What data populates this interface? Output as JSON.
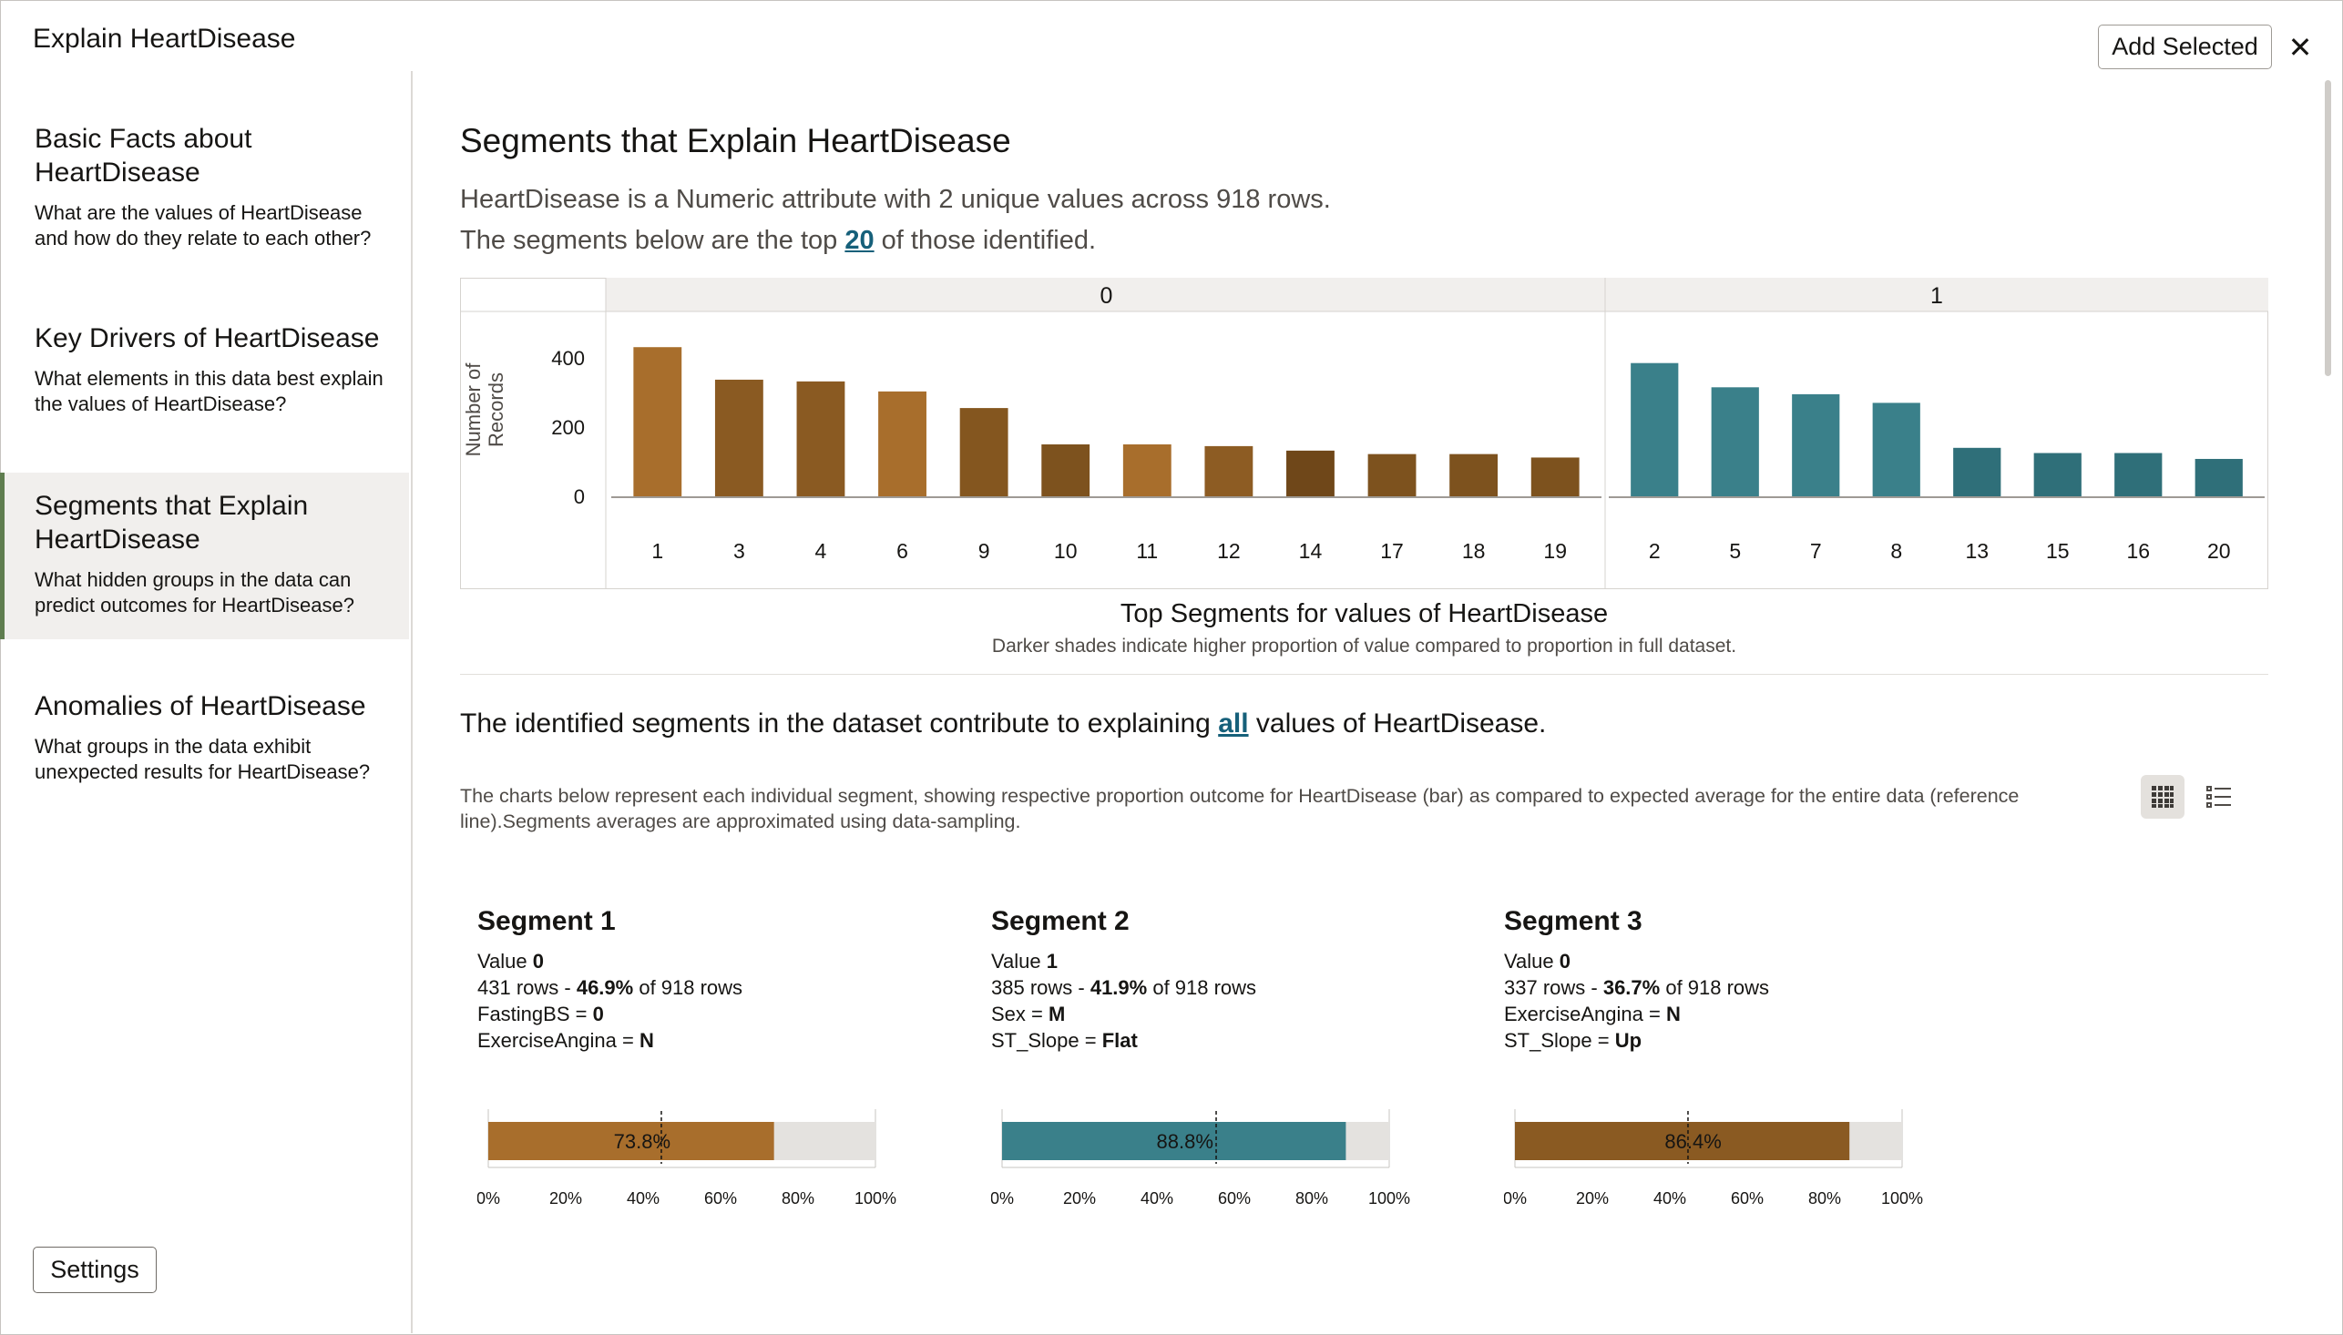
{
  "window": {
    "title": "Explain HeartDisease",
    "add_selected_label": "Add Selected",
    "close_label": "✕"
  },
  "sidebar": {
    "items": [
      {
        "title": "Basic Facts about HeartDisease",
        "desc": "What are the values of HeartDisease and how do they relate to each other?"
      },
      {
        "title": "Key Drivers of HeartDisease",
        "desc": "What elements in this data best explain the values of HeartDisease?"
      },
      {
        "title": "Segments that Explain HeartDisease",
        "desc": "What hidden groups in the data can predict outcomes for HeartDisease?"
      },
      {
        "title": "Anomalies of HeartDisease",
        "desc": "What groups in the data exhibit unexpected results for HeartDisease?"
      }
    ],
    "active_index": 2,
    "active_color": "#5f7d4f",
    "settings_label": "Settings"
  },
  "main": {
    "title": "Segments that Explain HeartDisease",
    "summary_line1": "HeartDisease is a Numeric attribute with 2 unique values across 918 rows.",
    "summary_line2_pre": "The segments below are the top ",
    "summary_line2_link": "20",
    "summary_line2_post": " of those identified.",
    "chart_caption": "Top Segments for values of HeartDisease",
    "chart_note": "Darker shades indicate higher proportion of value compared to proportion in full dataset.",
    "explain_pre": "The identified segments in the dataset contribute to explaining ",
    "explain_link": "all",
    "explain_post": " values of HeartDisease.",
    "description": "The charts below represent each individual segment, showing respective proportion outcome for HeartDisease (bar) as compared to expected average for the entire data (reference line).Segments averages are approximated using data-sampling.",
    "view_toggle": {
      "grid_icon": "grid-view-icon",
      "list_icon": "list-view-icon",
      "selected": "grid"
    }
  },
  "chart_data": {
    "type": "bar",
    "title": "Top Segments for values of HeartDisease",
    "ylabel": "Number of Records",
    "ylim": [
      0,
      500
    ],
    "yticks": [
      0,
      200,
      400
    ],
    "panels": [
      {
        "name": "0",
        "color": "#8a5a22",
        "categories": [
          "1",
          "3",
          "4",
          "6",
          "9",
          "10",
          "11",
          "12",
          "14",
          "17",
          "18",
          "19"
        ],
        "values": [
          431,
          337,
          332,
          303,
          255,
          150,
          150,
          145,
          132,
          122,
          122,
          112
        ],
        "colors": [
          "#a86e2c",
          "#8a5a22",
          "#8a5a22",
          "#a86e2c",
          "#84561f",
          "#7d521e",
          "#a86e2c",
          "#8d5c23",
          "#6f4719",
          "#7d521e",
          "#7d521e",
          "#7d521e"
        ]
      },
      {
        "name": "1",
        "color": "#3a808a",
        "categories": [
          "2",
          "5",
          "7",
          "8",
          "13",
          "15",
          "16",
          "20"
        ],
        "values": [
          385,
          315,
          295,
          270,
          140,
          125,
          125,
          108
        ],
        "colors": [
          "#3a808a",
          "#3a808a",
          "#3a808a",
          "#3a808a",
          "#2f6f79",
          "#2f6f79",
          "#2f6f79",
          "#2f6f79"
        ]
      }
    ]
  },
  "segments": [
    {
      "name": "Segment 1",
      "value_label": "Value ",
      "value": "0",
      "rows_pre": "431 rows - ",
      "rows_pct": "46.9%",
      "rows_post": " of 918 rows",
      "cond1_attr": "FastingBS = ",
      "cond1_val": "0",
      "cond2_attr": "ExerciseAngina = ",
      "cond2_val": "N",
      "bar_label": "73.8%",
      "bar_fraction": 0.738,
      "reference": 0.447,
      "color": "#a86e2c",
      "ticks": [
        "0%",
        "20%",
        "40%",
        "60%",
        "80%",
        "100%"
      ]
    },
    {
      "name": "Segment 2",
      "value_label": "Value ",
      "value": "1",
      "rows_pre": "385 rows - ",
      "rows_pct": "41.9%",
      "rows_post": " of 918 rows",
      "cond1_attr": "Sex = ",
      "cond1_val": "M",
      "cond2_attr": "ST_Slope = ",
      "cond2_val": "Flat",
      "bar_label": "88.8%",
      "bar_fraction": 0.888,
      "reference": 0.553,
      "color": "#3a808a",
      "ticks": [
        "0%",
        "20%",
        "40%",
        "60%",
        "80%",
        "100%"
      ]
    },
    {
      "name": "Segment 3",
      "value_label": "Value ",
      "value": "0",
      "rows_pre": "337 rows - ",
      "rows_pct": "36.7%",
      "rows_post": " of 918 rows",
      "cond1_attr": "ExerciseAngina = ",
      "cond1_val": "N",
      "cond2_attr": "ST_Slope = ",
      "cond2_val": "Up",
      "bar_label": "86.4%",
      "bar_fraction": 0.864,
      "reference": 0.447,
      "color": "#8a5a22",
      "ticks": [
        "0%",
        "20%",
        "40%",
        "60%",
        "80%",
        "100%"
      ]
    }
  ]
}
